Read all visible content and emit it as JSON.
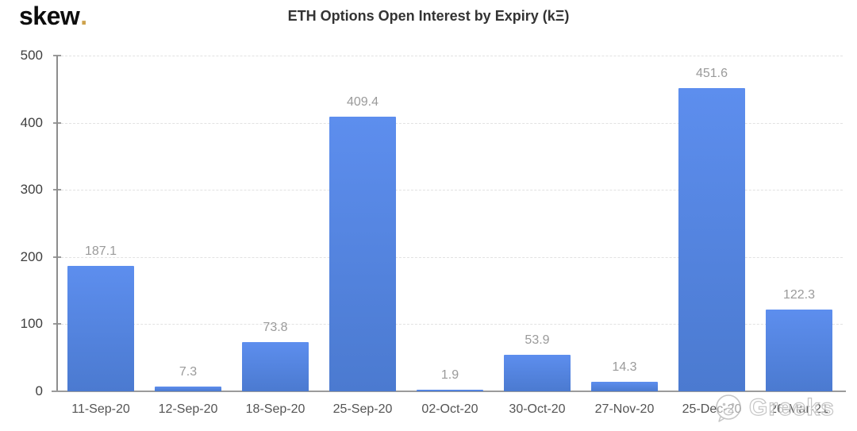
{
  "logo": {
    "text": "skew",
    "dot": ".",
    "dot_color": "#cda24c"
  },
  "watermark": {
    "icon": "smiley-face",
    "text": "Greeks"
  },
  "chart_data": {
    "type": "bar",
    "title": "ETH Options Open Interest by Expiry (kΞ)",
    "categories": [
      "11-Sep-20",
      "12-Sep-20",
      "18-Sep-20",
      "25-Sep-20",
      "02-Oct-20",
      "30-Oct-20",
      "27-Nov-20",
      "25-Dec-20",
      "26-Mar-21"
    ],
    "values": [
      187.1,
      7.3,
      73.8,
      409.4,
      1.9,
      53.9,
      14.3,
      451.6,
      122.3
    ],
    "value_labels": [
      "187.1",
      "7.3",
      "73.8",
      "409.4",
      "1.9",
      "53.9",
      "14.3",
      "451.6",
      "122.3"
    ],
    "xlabel": "",
    "ylabel": "",
    "ylim": [
      0,
      500
    ],
    "yticks": [
      0,
      100,
      200,
      300,
      400,
      500
    ],
    "grid": "horizontal-dashed",
    "legend": "none",
    "bar_color_top": "#5d8eee",
    "bar_color_bottom": "#4b7ad0",
    "grid_color": "#e2e2e2",
    "axis_color": "#9b9b9b",
    "value_label_color": "#9a9a9a",
    "tick_label_color": "#545454"
  }
}
